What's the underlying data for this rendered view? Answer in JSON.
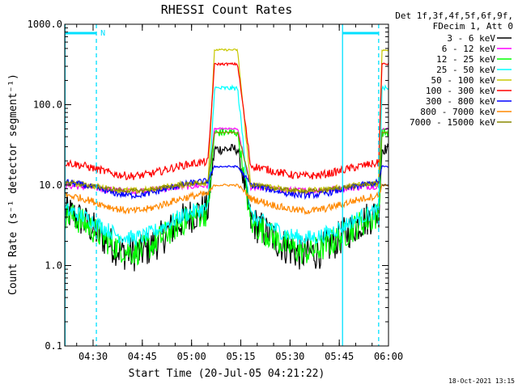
{
  "chart_data": {
    "type": "line",
    "title": "RHESSI Count Rates",
    "xlabel": "Start Time (20-Jul-05 04:21:22)",
    "ylabel": "Count Rate (s⁻¹ detector segment⁻¹)",
    "y_scale": "log",
    "ylim": [
      0.1,
      1000
    ],
    "xlim": [
      "04:21:22",
      "06:00:00"
    ],
    "x_ticks": [
      "04:30",
      "04:45",
      "05:00",
      "05:15",
      "05:30",
      "05:45",
      "06:00"
    ],
    "y_ticks": [
      "0.1",
      "1.0",
      "10.0",
      "100.0",
      "1000.0"
    ],
    "legend_header": [
      "Det 1f,3f,4f,5f,6f,9f,",
      "FDecim 1, Att 0"
    ],
    "legend_placement": "right",
    "timestamp": "18-Oct-2021 13:15",
    "night_marker": "N",
    "series": [
      {
        "name": "3 - 6 keV",
        "color": "#000000",
        "base": 5.5,
        "peak": 28,
        "min": 1.4,
        "noise": 0.45
      },
      {
        "name": "6 - 12 keV",
        "color": "#ff00ff",
        "base": 10,
        "peak": 50,
        "min": 8.5,
        "noise": 0.08
      },
      {
        "name": "12 - 25 keV",
        "color": "#00ff00",
        "base": 5,
        "peak": 45,
        "min": 1.5,
        "noise": 0.35
      },
      {
        "name": "25 - 50 keV",
        "color": "#00ffff",
        "base": 5.5,
        "peak": 160,
        "min": 2.2,
        "noise": 0.2
      },
      {
        "name": "50 - 100 keV",
        "color": "#c8c800",
        "base": 11,
        "peak": 480,
        "min": 8.5,
        "noise": 0.08
      },
      {
        "name": "100 - 300 keV",
        "color": "#ff0000",
        "base": 20,
        "peak": 320,
        "min": 13,
        "noise": 0.1
      },
      {
        "name": "300 - 800 keV",
        "color": "#0000ff",
        "base": 11.5,
        "peak": 17,
        "min": 7.5,
        "noise": 0.08
      },
      {
        "name": "800 - 7000 keV",
        "color": "#ff8800",
        "base": 8,
        "peak": 10,
        "min": 4.8,
        "noise": 0.09
      },
      {
        "name": "7000 - 15000 keV",
        "color": "#888800",
        "base": 11,
        "peak": 45,
        "min": 8.5,
        "noise": 0.05
      }
    ]
  }
}
